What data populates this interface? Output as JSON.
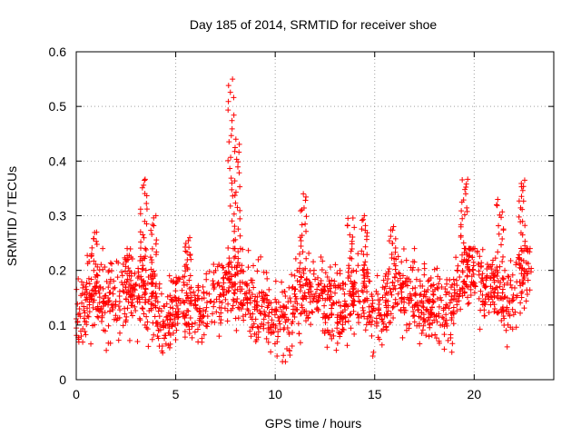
{
  "chart_data": {
    "type": "scatter",
    "title": "Day 185 of 2014, SRMTID for receiver shoe",
    "xlabel": "GPS time / hours",
    "ylabel": "SRMTID / TECUs",
    "xlim": [
      0,
      24
    ],
    "ylim": [
      0,
      0.6
    ],
    "xticks": [
      0,
      5,
      10,
      15,
      20
    ],
    "yticks": [
      0,
      0.1,
      0.2,
      0.3,
      0.4,
      0.5,
      0.6
    ],
    "grid": true,
    "marker": "+",
    "series_color": "#ff0000",
    "x_range_of_data": [
      0,
      22.9
    ],
    "background_level": [
      [
        0.0,
        0.13
      ],
      [
        0.5,
        0.14
      ],
      [
        1.0,
        0.15
      ],
      [
        1.5,
        0.14
      ],
      [
        2.0,
        0.16
      ],
      [
        2.5,
        0.15
      ],
      [
        3.0,
        0.16
      ],
      [
        3.5,
        0.17
      ],
      [
        4.0,
        0.12
      ],
      [
        4.5,
        0.1
      ],
      [
        5.0,
        0.14
      ],
      [
        5.5,
        0.15
      ],
      [
        6.0,
        0.13
      ],
      [
        6.5,
        0.14
      ],
      [
        7.0,
        0.15
      ],
      [
        7.5,
        0.17
      ],
      [
        8.0,
        0.18
      ],
      [
        8.5,
        0.16
      ],
      [
        9.0,
        0.13
      ],
      [
        9.5,
        0.12
      ],
      [
        10.0,
        0.12
      ],
      [
        10.5,
        0.11
      ],
      [
        11.0,
        0.14
      ],
      [
        11.5,
        0.16
      ],
      [
        12.0,
        0.16
      ],
      [
        12.5,
        0.15
      ],
      [
        13.0,
        0.14
      ],
      [
        13.5,
        0.13
      ],
      [
        14.0,
        0.15
      ],
      [
        14.5,
        0.16
      ],
      [
        15.0,
        0.11
      ],
      [
        15.5,
        0.14
      ],
      [
        16.0,
        0.17
      ],
      [
        16.5,
        0.16
      ],
      [
        17.0,
        0.15
      ],
      [
        17.5,
        0.14
      ],
      [
        18.0,
        0.13
      ],
      [
        18.5,
        0.12
      ],
      [
        19.0,
        0.14
      ],
      [
        19.5,
        0.2
      ],
      [
        20.0,
        0.2
      ],
      [
        20.5,
        0.16
      ],
      [
        21.0,
        0.17
      ],
      [
        21.5,
        0.14
      ],
      [
        22.0,
        0.15
      ],
      [
        22.5,
        0.2
      ],
      [
        22.9,
        0.18
      ]
    ],
    "spikes": [
      {
        "x": 0.9,
        "peak": 0.27
      },
      {
        "x": 2.6,
        "peak": 0.24
      },
      {
        "x": 3.4,
        "peak": 0.37
      },
      {
        "x": 3.9,
        "peak": 0.3
      },
      {
        "x": 5.6,
        "peak": 0.26
      },
      {
        "x": 7.8,
        "peak": 0.55
      },
      {
        "x": 8.1,
        "peak": 0.44
      },
      {
        "x": 11.4,
        "peak": 0.34
      },
      {
        "x": 13.8,
        "peak": 0.3
      },
      {
        "x": 14.5,
        "peak": 0.3
      },
      {
        "x": 15.9,
        "peak": 0.28
      },
      {
        "x": 19.5,
        "peak": 0.37
      },
      {
        "x": 21.3,
        "peak": 0.33
      },
      {
        "x": 22.4,
        "peak": 0.37
      }
    ],
    "min_value_approx": 0.03,
    "max_value_approx": 0.55
  }
}
